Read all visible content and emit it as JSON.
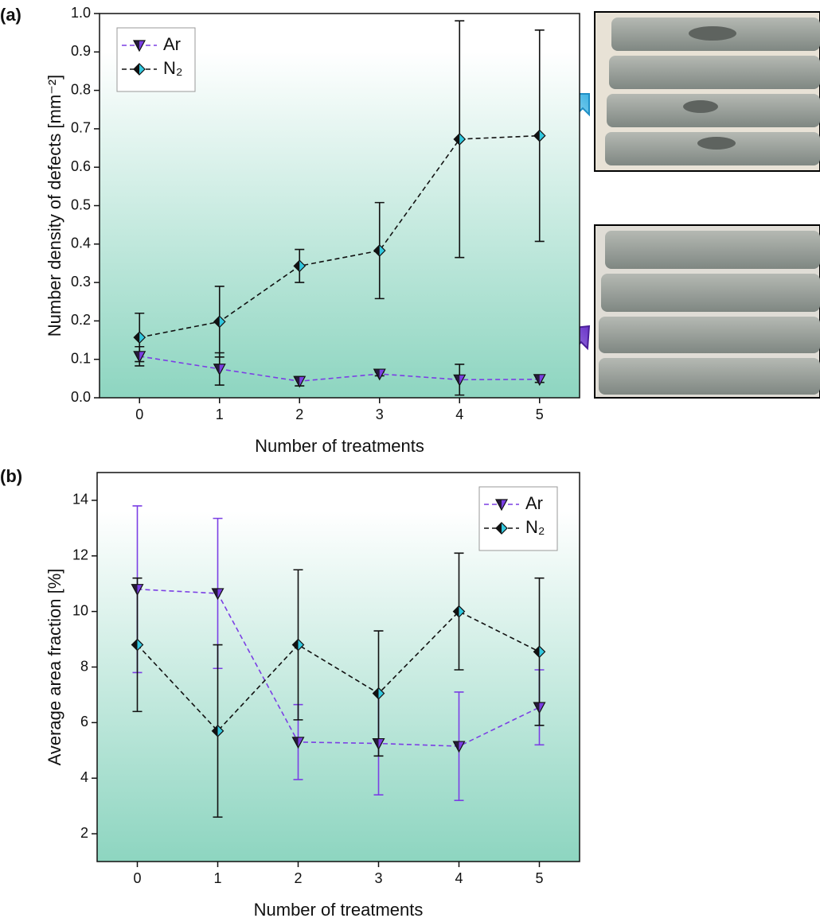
{
  "chart_data": [
    {
      "type": "line",
      "panel_label": "(a)",
      "x_label": "Number of treatments",
      "y_label": "Number density of defects [mm⁻²]",
      "x": [
        0,
        1,
        2,
        3,
        4,
        5
      ],
      "xlim": [
        -0.5,
        5.5
      ],
      "xticks": [
        0,
        1,
        2,
        3,
        4,
        5
      ],
      "ylim": [
        0,
        1
      ],
      "yticks": [
        {
          "value": 0,
          "label": "0.0"
        },
        0.1,
        0.2,
        0.3,
        0.4,
        0.5,
        0.6,
        0.7,
        0.8,
        0.9,
        {
          "value": 1,
          "label": "1.0"
        }
      ],
      "legend": "upper left",
      "series": [
        {
          "name": "Ar",
          "color": "#7b3fe4",
          "marker": "triangle-down",
          "error_color": "#111111",
          "values": [
            0.108,
            0.075,
            0.043,
            0.062,
            0.047,
            0.048
          ],
          "errors": [
            0.025,
            0.042,
            0.012,
            0.005,
            0.04,
            0.008
          ]
        },
        {
          "name": "N₂",
          "color": "#111111",
          "marker": "diamond",
          "error_color": "#111111",
          "values": [
            0.157,
            0.198,
            0.343,
            0.383,
            0.673,
            0.682
          ],
          "errors": [
            0.063,
            0.092,
            0.043,
            0.125,
            0.308,
            0.275
          ]
        }
      ]
    },
    {
      "type": "line",
      "panel_label": "(b)",
      "x_label": "Number of treatments",
      "y_label": "Average area fraction [%]",
      "x": [
        0,
        1,
        2,
        3,
        4,
        5
      ],
      "xlim": [
        -0.5,
        5.5
      ],
      "xticks": [
        0,
        1,
        2,
        3,
        4,
        5
      ],
      "ylim": [
        1,
        15
      ],
      "yticks": [
        2,
        4,
        6,
        8,
        10,
        12,
        14
      ],
      "legend": "upper right",
      "series": [
        {
          "name": "Ar",
          "color": "#7b3fe4",
          "marker": "triangle-down",
          "error_color": "#7b3fe4",
          "values": [
            10.8,
            10.65,
            5.3,
            5.25,
            5.15,
            6.55
          ],
          "errors": [
            3.0,
            2.7,
            1.35,
            1.85,
            1.95,
            1.35
          ]
        },
        {
          "name": "N₂",
          "color": "#111111",
          "marker": "diamond",
          "error_color": "#111111",
          "values": [
            8.8,
            5.7,
            8.8,
            7.05,
            10.0,
            8.55
          ],
          "errors": [
            2.4,
            3.1,
            2.7,
            2.25,
            2.1,
            2.65
          ]
        }
      ]
    }
  ]
}
